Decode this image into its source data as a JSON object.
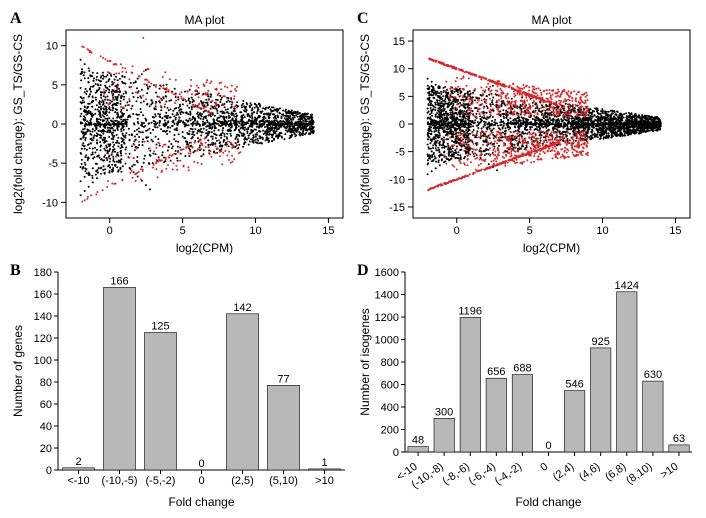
{
  "panelA": {
    "letter": "A",
    "type": "scatter",
    "title": "MA plot",
    "xlabel": "log2(CPM)",
    "ylabel": "log2(fold change): GS_TS/GS-CS",
    "xlim": [
      -3,
      16
    ],
    "ylim": [
      -12,
      12
    ],
    "xticks": [
      0,
      5,
      10,
      15
    ],
    "yticks": [
      -10,
      -5,
      0,
      5,
      10
    ],
    "point_radius": 1.0,
    "colors": {
      "sig": "#d62728",
      "nonsig": "#000000"
    },
    "background": "#ffffff",
    "seed": 12345,
    "n_nonsig": 2200,
    "n_sig": 320
  },
  "panelB": {
    "letter": "B",
    "type": "bar",
    "xlabel": "Fold change",
    "ylabel": "Number of genes",
    "categories": [
      "<-10",
      "(-10,-5)",
      "(-5,-2)",
      "0",
      "(2,5)",
      "(5,10)",
      ">10"
    ],
    "values": [
      2,
      166,
      125,
      0,
      142,
      77,
      1
    ],
    "ylim": [
      0,
      180
    ],
    "yticks": [
      0,
      20,
      40,
      60,
      80,
      100,
      120,
      140,
      160,
      180
    ],
    "bar_fill": "#b8b8b8",
    "bar_stroke": "#000000",
    "label_fontsize": 11
  },
  "panelC": {
    "letter": "C",
    "type": "scatter",
    "title": "MA plot",
    "xlabel": "log2(CPM)",
    "ylabel": "log2(fold change): GS_TS/GS-CS",
    "xlim": [
      -3,
      16
    ],
    "ylim": [
      -17,
      17
    ],
    "xticks": [
      0,
      5,
      10,
      15
    ],
    "yticks": [
      -15,
      -10,
      -5,
      0,
      5,
      10,
      15
    ],
    "point_radius": 1.0,
    "colors": {
      "sig": "#d62728",
      "nonsig": "#000000"
    },
    "background": "#ffffff",
    "seed": 54321,
    "n_nonsig": 3200,
    "n_sig": 1400
  },
  "panelD": {
    "letter": "D",
    "type": "bar",
    "xlabel": "Fold change",
    "ylabel": "Number of isogenes",
    "categories": [
      "<-10",
      "(-10,-8)",
      "(-8,-6)",
      "(-6,-4)",
      "(-4,-2)",
      "0",
      "(2,4)",
      "(4,6)",
      "(6,8)",
      "(8,10)",
      ">10"
    ],
    "values": [
      48,
      300,
      1196,
      656,
      688,
      0,
      546,
      925,
      1424,
      630,
      63
    ],
    "ylim": [
      0,
      1600
    ],
    "yticks": [
      0,
      200,
      400,
      600,
      800,
      1000,
      1200,
      1400,
      1600
    ],
    "bar_fill": "#b8b8b8",
    "bar_stroke": "#000000",
    "label_fontsize": 11
  }
}
